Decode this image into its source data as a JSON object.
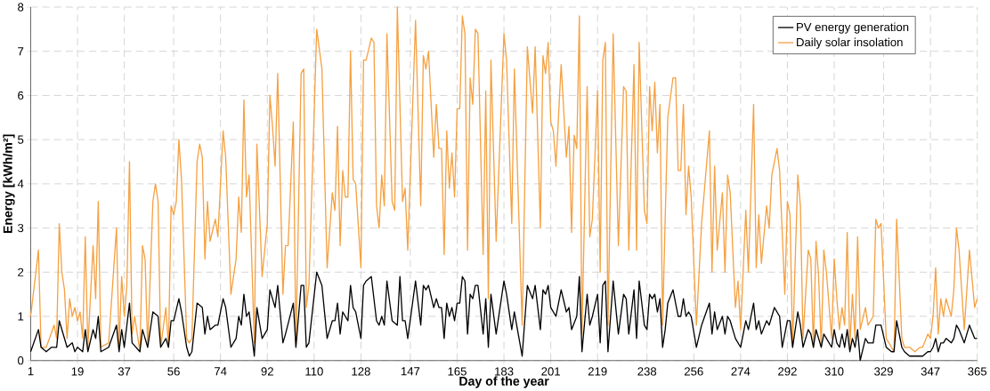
{
  "chart_data": {
    "type": "line",
    "xlabel": "Day of the year",
    "ylabel": "Energy [kWh/m²]",
    "xlim": [
      1,
      365
    ],
    "ylim": [
      0,
      8
    ],
    "xticks": [
      1,
      19,
      37,
      56,
      74,
      92,
      110,
      128,
      147,
      165,
      183,
      201,
      219,
      238,
      256,
      274,
      292,
      310,
      329,
      347,
      365
    ],
    "yticks": [
      0,
      1,
      2,
      3,
      4,
      5,
      6,
      7,
      8
    ],
    "grid": true,
    "legend": "top right",
    "marker": "none",
    "line_style": "solid",
    "series": [
      {
        "name": "PV energy generation",
        "color": "#000000",
        "x": [
          1,
          4,
          5,
          7,
          9,
          11,
          12,
          14,
          15,
          17,
          18,
          19,
          21,
          22,
          23,
          25,
          26,
          27,
          28,
          31,
          34,
          35,
          36,
          37,
          39,
          40,
          43,
          44,
          46,
          48,
          50,
          51,
          53,
          54,
          55,
          56,
          58,
          59,
          61,
          62,
          63,
          65,
          67,
          68,
          69,
          70,
          72,
          73,
          75,
          76,
          78,
          80,
          81,
          82,
          83,
          84,
          85,
          87,
          88,
          90,
          92,
          93,
          94,
          95,
          96,
          98,
          99,
          102,
          103,
          105,
          106,
          107,
          108,
          111,
          113,
          115,
          117,
          118,
          119,
          120,
          121,
          122,
          123,
          124,
          125,
          126,
          128,
          129,
          130,
          132,
          134,
          135,
          136,
          137,
          138,
          140,
          142,
          143,
          144,
          145,
          146,
          149,
          151,
          152,
          153,
          154,
          156,
          157,
          158,
          159,
          160,
          161,
          162,
          163,
          164,
          165,
          166,
          167,
          168,
          169,
          170,
          171,
          172,
          173,
          175,
          176,
          177,
          178,
          180,
          183,
          184,
          186,
          187,
          190,
          192,
          194,
          195,
          197,
          198,
          199,
          200,
          201,
          203,
          205,
          207,
          208,
          209,
          211,
          212,
          213,
          215,
          216,
          217,
          219,
          220,
          221,
          222,
          223,
          225,
          227,
          229,
          230,
          231,
          233,
          234,
          235,
          237,
          238,
          239,
          240,
          241,
          242,
          243,
          244,
          245,
          246,
          248,
          250,
          251,
          252,
          253,
          254,
          255,
          257,
          259,
          262,
          263,
          264,
          265,
          267,
          268,
          269,
          270,
          272,
          274,
          276,
          277,
          279,
          280,
          281,
          282,
          284,
          285,
          287,
          289,
          290,
          292,
          293,
          294,
          296,
          297,
          298,
          300,
          301,
          302,
          303,
          304,
          305,
          306,
          307,
          309,
          310,
          311,
          312,
          313,
          314,
          315,
          316,
          317,
          318,
          319,
          320,
          322,
          323,
          325,
          326,
          327,
          328,
          330,
          332,
          333,
          334,
          336,
          337,
          339,
          341,
          343,
          344,
          346,
          347,
          348,
          349,
          350,
          351,
          352,
          353,
          355,
          356,
          357,
          358,
          360,
          362,
          364,
          365
        ],
        "values": [
          0.2,
          0.7,
          0.3,
          0.2,
          0.3,
          0.3,
          0.9,
          0.5,
          0.3,
          0.4,
          0.2,
          0.3,
          0.2,
          0.7,
          0.2,
          0.7,
          0.5,
          1.0,
          0.2,
          0.3,
          0.8,
          0.2,
          0.7,
          0.3,
          1.3,
          0.4,
          0.2,
          0.7,
          0.3,
          1.1,
          1.0,
          0.3,
          0.5,
          0.3,
          0.9,
          0.9,
          1.4,
          1.1,
          0.3,
          0.1,
          0.2,
          1.3,
          1.2,
          0.6,
          1.0,
          0.7,
          0.8,
          0.8,
          1.4,
          1.2,
          0.3,
          0.5,
          1.0,
          0.8,
          1.5,
          1.0,
          1.1,
          0.1,
          1.2,
          0.5,
          0.7,
          1.6,
          1.4,
          1.2,
          1.7,
          0.4,
          0.6,
          1.3,
          0.3,
          1.7,
          1.7,
          0.3,
          0.4,
          2.0,
          1.7,
          0.5,
          0.9,
          0.9,
          1.3,
          0.6,
          1.1,
          1.0,
          0.9,
          1.7,
          1.2,
          1.1,
          0.5,
          1.7,
          1.8,
          1.9,
          0.9,
          0.8,
          1.0,
          0.8,
          1.8,
          0.9,
          0.8,
          1.9,
          0.9,
          0.9,
          0.5,
          1.8,
          0.8,
          1.7,
          1.6,
          1.7,
          1.2,
          1.4,
          1.2,
          1.2,
          0.5,
          1.3,
          1.0,
          1.2,
          0.9,
          1.3,
          1.3,
          1.9,
          1.8,
          0.6,
          1.5,
          1.4,
          1.7,
          1.7,
          0.6,
          1.4,
          0.3,
          1.5,
          0.6,
          1.8,
          1.5,
          0.7,
          1.1,
          0.1,
          1.7,
          1.4,
          1.7,
          0.7,
          1.6,
          1.5,
          1.7,
          1.2,
          1.0,
          1.6,
          1.1,
          1.2,
          0.7,
          1.0,
          1.9,
          0.2,
          1.5,
          0.8,
          1.0,
          1.5,
          0.4,
          1.7,
          1.8,
          0.2,
          1.8,
          0.6,
          1.5,
          1.4,
          0.6,
          1.6,
          0.5,
          1.8,
          0.8,
          0.7,
          1.5,
          1.4,
          1.5,
          1.1,
          1.4,
          0.3,
          0.7,
          1.3,
          1.6,
          1.0,
          1.0,
          1.4,
          1.0,
          1.1,
          1.0,
          0.3,
          0.8,
          1.3,
          0.6,
          1.1,
          0.7,
          1.0,
          0.6,
          1.0,
          0.9,
          0.5,
          0.3,
          0.9,
          0.7,
          1.3,
          0.7,
          0.9,
          0.6,
          0.9,
          0.8,
          1.2,
          1.0,
          0.3,
          0.9,
          0.9,
          0.3,
          1.1,
          0.8,
          0.3,
          0.7,
          0.6,
          0.3,
          0.7,
          0.5,
          0.3,
          0.6,
          0.5,
          0.3,
          0.7,
          0.4,
          0.3,
          0.6,
          0.3,
          0.7,
          0.2,
          0.5,
          0.3,
          0.7,
          0.0,
          0.5,
          0.4,
          0.4,
          0.8,
          0.8,
          0.8,
          0.3,
          0.2,
          0.2,
          0.9,
          0.3,
          0.2,
          0.1,
          0.1,
          0.1,
          0.1,
          0.2,
          0.2,
          0.3,
          0.5,
          0.2,
          0.4,
          0.4,
          0.5,
          0.4,
          0.5,
          0.8,
          0.7,
          0.4,
          0.8,
          0.5,
          0.5
        ]
      },
      {
        "name": "Daily solar insolation",
        "color": "#f5a142",
        "x": [
          1,
          4,
          5,
          7,
          10,
          11,
          12,
          13,
          14,
          15,
          16,
          17,
          18,
          19,
          20,
          21,
          22,
          23,
          25,
          26,
          27,
          28,
          31,
          34,
          35,
          36,
          37,
          38,
          39,
          40,
          41,
          43,
          44,
          45,
          46,
          48,
          49,
          50,
          51,
          53,
          54,
          55,
          56,
          57,
          58,
          59,
          61,
          62,
          63,
          65,
          66,
          67,
          68,
          69,
          70,
          72,
          73,
          75,
          76,
          78,
          80,
          81,
          82,
          83,
          84,
          85,
          87,
          88,
          90,
          92,
          93,
          94,
          95,
          96,
          98,
          99,
          100,
          102,
          103,
          105,
          106,
          107,
          108,
          111,
          113,
          115,
          117,
          118,
          119,
          120,
          121,
          122,
          123,
          124,
          125,
          126,
          128,
          129,
          130,
          132,
          133,
          134,
          135,
          136,
          137,
          138,
          140,
          141,
          142,
          144,
          145,
          146,
          149,
          151,
          152,
          153,
          154,
          156,
          157,
          158,
          159,
          160,
          161,
          162,
          163,
          164,
          165,
          166,
          167,
          168,
          169,
          170,
          171,
          172,
          173,
          175,
          176,
          177,
          178,
          180,
          183,
          184,
          186,
          187,
          190,
          192,
          194,
          195,
          197,
          198,
          199,
          200,
          201,
          202,
          203,
          205,
          207,
          208,
          209,
          210,
          211,
          212,
          213,
          215,
          216,
          217,
          219,
          220,
          221,
          222,
          223,
          225,
          227,
          229,
          230,
          231,
          233,
          234,
          235,
          237,
          238,
          239,
          240,
          241,
          242,
          243,
          244,
          245,
          246,
          248,
          249,
          250,
          251,
          252,
          253,
          254,
          255,
          257,
          259,
          262,
          263,
          264,
          265,
          267,
          268,
          269,
          270,
          272,
          273,
          274,
          276,
          277,
          279,
          280,
          281,
          282,
          284,
          285,
          286,
          288,
          289,
          291,
          292,
          293,
          294,
          296,
          297,
          298,
          300,
          301,
          302,
          303,
          304,
          305,
          306,
          307,
          309,
          310,
          311,
          312,
          313,
          314,
          315,
          316,
          317,
          318,
          319,
          320,
          322,
          323,
          325,
          326,
          327,
          328,
          330,
          332,
          333,
          334,
          336,
          337,
          339,
          341,
          343,
          344,
          346,
          347,
          348,
          349,
          350,
          351,
          352,
          353,
          355,
          356,
          357,
          358,
          360,
          362,
          364,
          365
        ],
        "values": [
          1.0,
          2.5,
          0.3,
          0.3,
          0.8,
          0.5,
          3.1,
          2.0,
          1.6,
          0.5,
          1.4,
          1.0,
          1.2,
          0.9,
          1.1,
          0.5,
          2.8,
          0.3,
          2.6,
          1.4,
          3.6,
          0.3,
          0.4,
          3.0,
          0.3,
          1.9,
          1.0,
          1.7,
          4.5,
          0.6,
          1.0,
          0.2,
          2.6,
          2.3,
          0.3,
          3.6,
          4.0,
          3.6,
          0.3,
          1.2,
          0.3,
          3.5,
          3.3,
          3.6,
          5.0,
          4.1,
          0.5,
          0.4,
          0.5,
          4.5,
          4.9,
          4.6,
          2.3,
          3.6,
          2.7,
          3.2,
          2.8,
          5.2,
          4.6,
          1.5,
          2.3,
          3.7,
          2.9,
          5.9,
          3.7,
          4.2,
          0.4,
          4.9,
          1.9,
          3.1,
          6.0,
          5.3,
          4.4,
          6.5,
          1.5,
          2.6,
          2.6,
          5.4,
          0.3,
          6.5,
          6.6,
          1.2,
          1.7,
          7.5,
          6.6,
          2.1,
          3.8,
          3.4,
          5.3,
          2.6,
          4.3,
          3.7,
          3.7,
          7.0,
          4.1,
          4.0,
          2.1,
          6.8,
          6.8,
          7.3,
          7.2,
          3.5,
          3.0,
          4.2,
          3.5,
          7.4,
          3.6,
          3.4,
          8.0,
          3.6,
          3.9,
          2.5,
          7.7,
          3.5,
          6.9,
          6.6,
          7.0,
          4.6,
          5.8,
          4.8,
          4.8,
          2.4,
          5.2,
          3.9,
          4.7,
          3.7,
          5.7,
          5.7,
          7.8,
          7.4,
          2.5,
          6.4,
          5.8,
          7.5,
          7.4,
          2.4,
          6.1,
          1.4,
          6.8,
          2.7,
          7.4,
          6.8,
          3.1,
          6.6,
          0.8,
          7.1,
          5.6,
          7.1,
          3.0,
          6.9,
          6.5,
          7.2,
          5.4,
          5.2,
          4.4,
          6.7,
          4.6,
          5.3,
          2.9,
          5.1,
          4.8,
          7.8,
          0.6,
          6.2,
          2.8,
          3.2,
          6.1,
          2.0,
          6.8,
          7.2,
          0.8,
          7.4,
          2.6,
          6.2,
          6.1,
          2.5,
          6.7,
          2.5,
          7.2,
          3.4,
          3.1,
          6.2,
          5.2,
          6.3,
          4.7,
          5.8,
          0.8,
          3.2,
          5.5,
          6.4,
          6.4,
          4.3,
          4.3,
          5.8,
          3.3,
          4.4,
          3.7,
          0.8,
          3.1,
          5.2,
          2.0,
          4.4,
          2.5,
          3.8,
          2.0,
          4.2,
          3.8,
          1.2,
          1.8,
          0.7,
          3.4,
          2.0,
          5.8,
          2.1,
          3.3,
          2.2,
          3.5,
          3.0,
          4.2,
          4.8,
          4.3,
          1.5,
          3.6,
          3.3,
          0.3,
          4.2,
          3.5,
          0.5,
          2.5,
          2.3,
          0.3,
          2.7,
          1.9,
          0.3,
          2.5,
          2.0,
          0.5,
          2.3,
          1.4,
          0.7,
          1.2,
          0.8,
          2.9,
          0.3,
          1.5,
          0.5,
          2.8,
          0.7,
          1.2,
          0.8,
          1.0,
          3.2,
          3.0,
          3.1,
          0.5,
          0.3,
          0.2,
          3.2,
          0.5,
          0.3,
          0.3,
          0.2,
          0.3,
          0.3,
          0.6,
          0.5,
          1.0,
          2.1,
          0.6,
          1.4,
          1.0,
          1.4,
          1.0,
          1.6,
          3.0,
          2.5,
          0.7,
          2.5,
          1.2,
          1.4
        ]
      }
    ]
  }
}
